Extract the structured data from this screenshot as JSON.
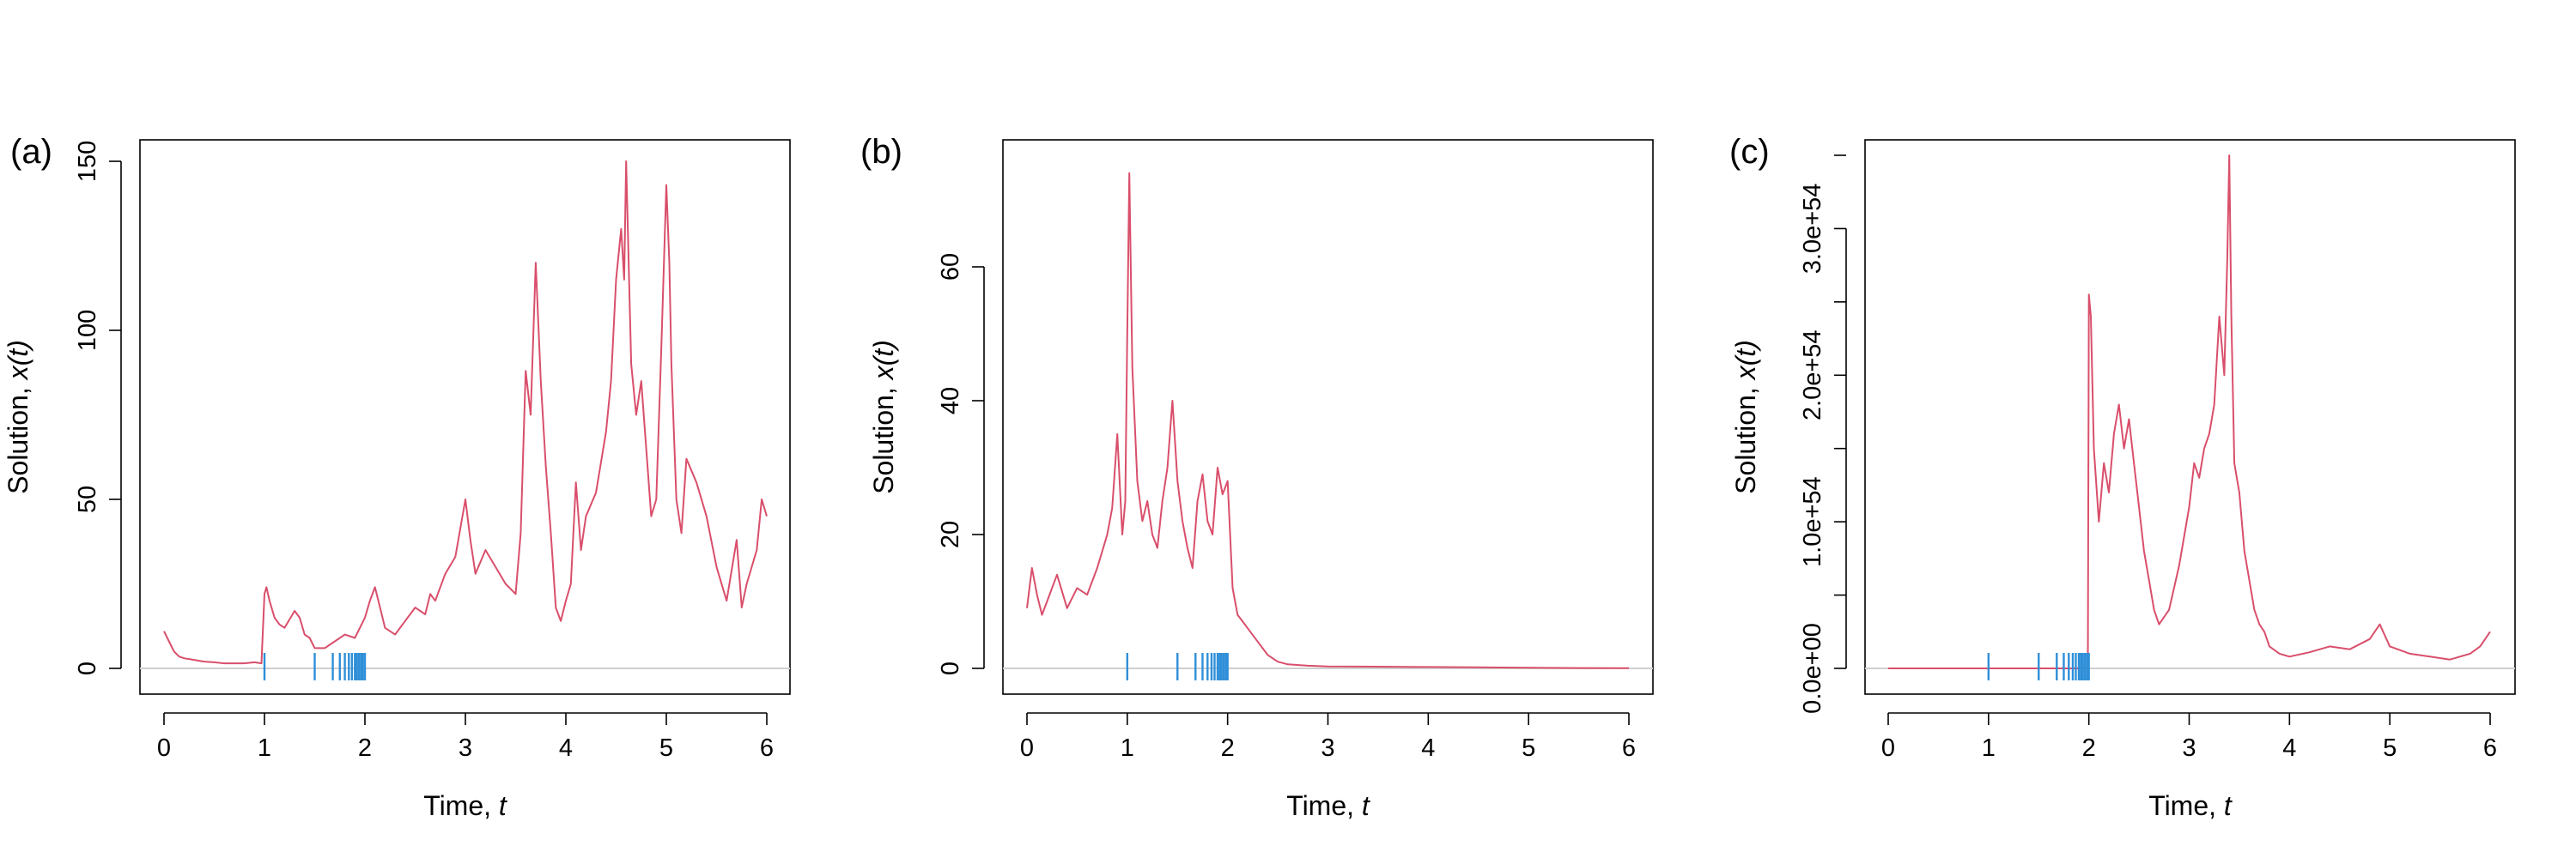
{
  "colors": {
    "line": "#d94f6b",
    "rug": "#2f8fd8",
    "zero_line": "#cfcfcf",
    "axis": "#000000"
  },
  "chart_data": [
    {
      "panel": "(a)",
      "type": "line",
      "xlabel": "Time, ",
      "xlabel_var": "t",
      "ylabel": "Solution,  ",
      "ylabel_var": "x(t)",
      "xlim": [
        0,
        6
      ],
      "ylim": [
        0,
        150
      ],
      "xticks": [
        "0",
        "1",
        "2",
        "3",
        "4",
        "5",
        "6"
      ],
      "yticks": [
        "0",
        "50",
        "100",
        "150"
      ],
      "ytick_values": [
        0,
        50,
        100,
        150
      ],
      "grid": false,
      "reference_line_y": 0,
      "rug_x": [
        1.0,
        1.5,
        1.68,
        1.75,
        1.8,
        1.84,
        1.87,
        1.9,
        1.92,
        1.94,
        1.96,
        1.98,
        2.0
      ],
      "series": [
        {
          "x": [
            0.0,
            0.05,
            0.1,
            0.15,
            0.2,
            0.3,
            0.4,
            0.5,
            0.6,
            0.7,
            0.8,
            0.9,
            0.97,
            1.0,
            1.02,
            1.05,
            1.1,
            1.15,
            1.2,
            1.3,
            1.35,
            1.4,
            1.45,
            1.5,
            1.6,
            1.7,
            1.8,
            1.9,
            2.0,
            2.05,
            2.1,
            2.15,
            2.2,
            2.3,
            2.4,
            2.5,
            2.6,
            2.65,
            2.7,
            2.8,
            2.9,
            3.0,
            3.05,
            3.1,
            3.2,
            3.3,
            3.4,
            3.5,
            3.55,
            3.6,
            3.65,
            3.7,
            3.75,
            3.8,
            3.85,
            3.9,
            3.95,
            4.0,
            4.05,
            4.1,
            4.15,
            4.2,
            4.3,
            4.4,
            4.45,
            4.5,
            4.55,
            4.58,
            4.6,
            4.65,
            4.7,
            4.75,
            4.8,
            4.85,
            4.9,
            4.95,
            5.0,
            5.03,
            5.05,
            5.1,
            5.15,
            5.2,
            5.3,
            5.4,
            5.5,
            5.6,
            5.7,
            5.75,
            5.8,
            5.9,
            5.95,
            6.0
          ],
          "y": [
            11,
            8,
            5,
            3.5,
            3,
            2.5,
            2,
            1.8,
            1.5,
            1.5,
            1.5,
            1.8,
            1.5,
            22,
            24,
            20,
            15,
            13,
            12,
            17,
            15,
            10,
            9,
            6,
            6,
            8,
            10,
            9,
            15,
            20,
            24,
            18,
            12,
            10,
            14,
            18,
            16,
            22,
            20,
            28,
            33,
            50,
            38,
            28,
            35,
            30,
            25,
            22,
            40,
            88,
            75,
            120,
            85,
            60,
            40,
            18,
            14,
            20,
            25,
            55,
            35,
            45,
            52,
            70,
            85,
            115,
            130,
            115,
            150,
            90,
            75,
            85,
            65,
            45,
            50,
            95,
            143,
            120,
            90,
            50,
            40,
            62,
            55,
            45,
            30,
            20,
            38,
            18,
            25,
            35,
            50,
            45
          ]
        }
      ]
    },
    {
      "panel": "(b)",
      "type": "line",
      "xlabel": "Time, ",
      "xlabel_var": "t",
      "ylabel": "Solution,  ",
      "ylabel_var": "x(t)",
      "xlim": [
        0,
        6
      ],
      "ylim": [
        0,
        75
      ],
      "xticks": [
        "0",
        "1",
        "2",
        "3",
        "4",
        "5",
        "6"
      ],
      "yticks": [
        "0",
        "20",
        "40",
        "60"
      ],
      "ytick_values": [
        0,
        20,
        40,
        60
      ],
      "grid": false,
      "reference_line_y": 0,
      "rug_x": [
        1.0,
        1.5,
        1.68,
        1.75,
        1.8,
        1.84,
        1.87,
        1.9,
        1.92,
        1.94,
        1.96,
        1.98,
        2.0
      ],
      "series": [
        {
          "x": [
            0.0,
            0.05,
            0.1,
            0.15,
            0.2,
            0.3,
            0.4,
            0.5,
            0.6,
            0.7,
            0.8,
            0.85,
            0.9,
            0.95,
            0.98,
            1.0,
            1.02,
            1.05,
            1.1,
            1.15,
            1.2,
            1.25,
            1.3,
            1.35,
            1.4,
            1.45,
            1.5,
            1.55,
            1.6,
            1.65,
            1.7,
            1.75,
            1.8,
            1.85,
            1.9,
            1.95,
            2.0,
            2.05,
            2.1,
            2.15,
            2.2,
            2.3,
            2.4,
            2.5,
            2.6,
            2.8,
            3.0,
            3.5,
            4.0,
            4.5,
            5.0,
            5.5,
            6.0
          ],
          "y": [
            9,
            15,
            11,
            8,
            10,
            14,
            9,
            12,
            11,
            15,
            20,
            24,
            35,
            20,
            25,
            50,
            74,
            45,
            28,
            22,
            25,
            20,
            18,
            25,
            30,
            40,
            28,
            22,
            18,
            15,
            25,
            29,
            22,
            20,
            30,
            26,
            28,
            12,
            8,
            7,
            6,
            4,
            2,
            1,
            0.6,
            0.4,
            0.3,
            0.25,
            0.2,
            0.15,
            0.1,
            0.05,
            0.02
          ]
        }
      ]
    },
    {
      "panel": "(c)",
      "type": "line",
      "xlabel": "Time, ",
      "xlabel_var": "t",
      "ylabel": "Solution,  ",
      "ylabel_var": "x(t)",
      "xlim": [
        0,
        6
      ],
      "ylim": [
        0,
        3.5e+54
      ],
      "xticks": [
        "0",
        "1",
        "2",
        "3",
        "4",
        "5",
        "6"
      ],
      "yticks": [
        "0.0e+00",
        "1.0e+54",
        "2.0e+54",
        "3.0e+54"
      ],
      "ytick_values": [
        0,
        1e+54,
        2e+54,
        3e+54
      ],
      "minor_yticks": [
        5e+53,
        1.5e+54,
        2.5e+54,
        3.5e+54
      ],
      "grid": false,
      "reference_line_y": 0,
      "rug_x": [
        1.0,
        1.5,
        1.68,
        1.75,
        1.8,
        1.84,
        1.87,
        1.9,
        1.92,
        1.94,
        1.96,
        1.98,
        2.0
      ],
      "series": [
        {
          "x": [
            0.0,
            0.5,
            1.0,
            1.5,
            1.9,
            1.98,
            1.99,
            2.0,
            2.02,
            2.05,
            2.1,
            2.15,
            2.2,
            2.25,
            2.3,
            2.35,
            2.4,
            2.45,
            2.5,
            2.55,
            2.6,
            2.65,
            2.7,
            2.8,
            2.9,
            3.0,
            3.05,
            3.1,
            3.15,
            3.2,
            3.25,
            3.3,
            3.35,
            3.38,
            3.4,
            3.42,
            3.45,
            3.5,
            3.55,
            3.6,
            3.65,
            3.7,
            3.75,
            3.8,
            3.9,
            4.0,
            4.2,
            4.4,
            4.6,
            4.8,
            4.9,
            5.0,
            5.2,
            5.4,
            5.6,
            5.8,
            5.9,
            6.0
          ],
          "y": [
            0,
            0,
            0,
            0,
            0,
            0,
            0,
            2.55e+54,
            2.4e+54,
            1.5e+54,
            1e+54,
            1.4e+54,
            1.2e+54,
            1.6e+54,
            1.8e+54,
            1.5e+54,
            1.7e+54,
            1.4e+54,
            1.1e+54,
            8e+53,
            6e+53,
            4e+53,
            3e+53,
            4e+53,
            7e+53,
            1.1e+54,
            1.4e+54,
            1.3e+54,
            1.5e+54,
            1.6e+54,
            1.8e+54,
            2.4e+54,
            2e+54,
            2.8e+54,
            3.5e+54,
            2.4e+54,
            1.4e+54,
            1.2e+54,
            8e+53,
            6e+53,
            4e+53,
            3e+53,
            2.5e+53,
            1.5e+53,
            1e+53,
            8e+52,
            1.1e+53,
            1.5e+53,
            1.3e+53,
            2e+53,
            3e+53,
            1.5e+53,
            1e+53,
            8e+52,
            6e+52,
            1e+53,
            1.5e+53,
            2.5e+53
          ]
        }
      ]
    }
  ]
}
